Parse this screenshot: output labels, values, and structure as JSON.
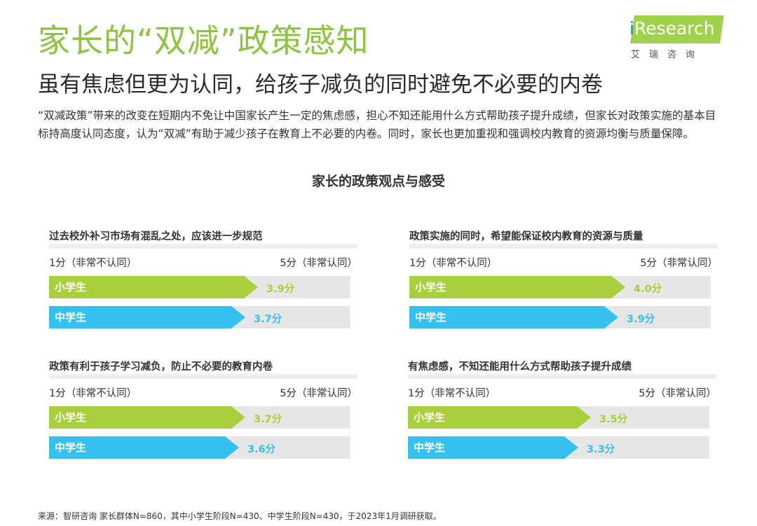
{
  "header": {
    "title": "家长的“双减”政策感知",
    "subtitle": "虽有焦虑但更为认同，给孩子减负的同时避免不必要的内卷"
  },
  "logo": {
    "prefix": "i",
    "name": "Research",
    "cn": "艾瑞咨询"
  },
  "intro": "“双减政策”带来的改变在短期内不免让中国家长产生一定的焦虑感，担心不知还能用什么方式帮助孩子提升成绩，但家长对政策实施的基本目标持高度认同态度，认为“双减”有助于减少孩子在教育上不必要的内卷。同时，家长也更加重视和强调校内教育的资源均衡与质量保障。",
  "footer": "来源：智研咨询 家长群体N=860，其中小学生阶段N=430、中学生阶段N=430，于2023年1月调研获取。",
  "colors": {
    "green": "#a9cf3c",
    "blue": "#34c1ef",
    "title_green": "#8cc43e",
    "track": "#e6e6e6"
  },
  "chart_data": {
    "type": "bar",
    "title": "家长的政策观点与感受",
    "scale": {
      "min": 1,
      "max": 5,
      "min_label": "1分（非常不认同）",
      "max_label": "5分（非常认同）"
    },
    "series_names": [
      "小学生",
      "中学生"
    ],
    "panels": [
      {
        "title": "过去校外补习市场有混乱之处，应该进一步规范",
        "values": [
          3.9,
          3.7
        ],
        "labels": [
          "3.9分",
          "3.7分"
        ]
      },
      {
        "title": "政策实施的同时，希望能保证校内教育的资源与质量",
        "values": [
          4.0,
          3.9
        ],
        "labels": [
          "4.0分",
          "3.9分"
        ]
      },
      {
        "title": "政策有利于孩子学习减负，防止不必要的教育内卷",
        "values": [
          3.7,
          3.6
        ],
        "labels": [
          "3.7分",
          "3.6分"
        ]
      },
      {
        "title": "有焦虑感，不知还能用什么方式帮助孩子提升成绩",
        "values": [
          3.5,
          3.3
        ],
        "labels": [
          "3.5分",
          "3.3分"
        ]
      }
    ]
  }
}
